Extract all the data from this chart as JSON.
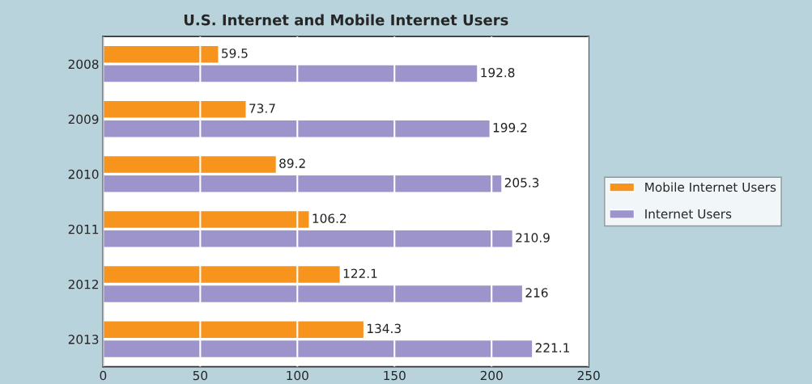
{
  "chart_data": {
    "type": "bar",
    "orientation": "horizontal",
    "title": "U.S. Internet and Mobile Internet Users",
    "categories": [
      "2008",
      "2009",
      "2010",
      "2011",
      "2012",
      "2013"
    ],
    "series": [
      {
        "name": "Mobile Internet Users",
        "color": "#f7941d",
        "values": [
          59.5,
          73.7,
          89.2,
          106.2,
          122.1,
          134.3
        ]
      },
      {
        "name": "Internet Users",
        "color": "#9e94cc",
        "values": [
          192.8,
          199.2,
          205.3,
          210.9,
          216,
          221.1
        ]
      }
    ],
    "xlim": [
      0,
      250
    ],
    "xticks": [
      0,
      50,
      100,
      150,
      200,
      250
    ],
    "grid": "x",
    "legend": "right",
    "data_labels": true
  }
}
